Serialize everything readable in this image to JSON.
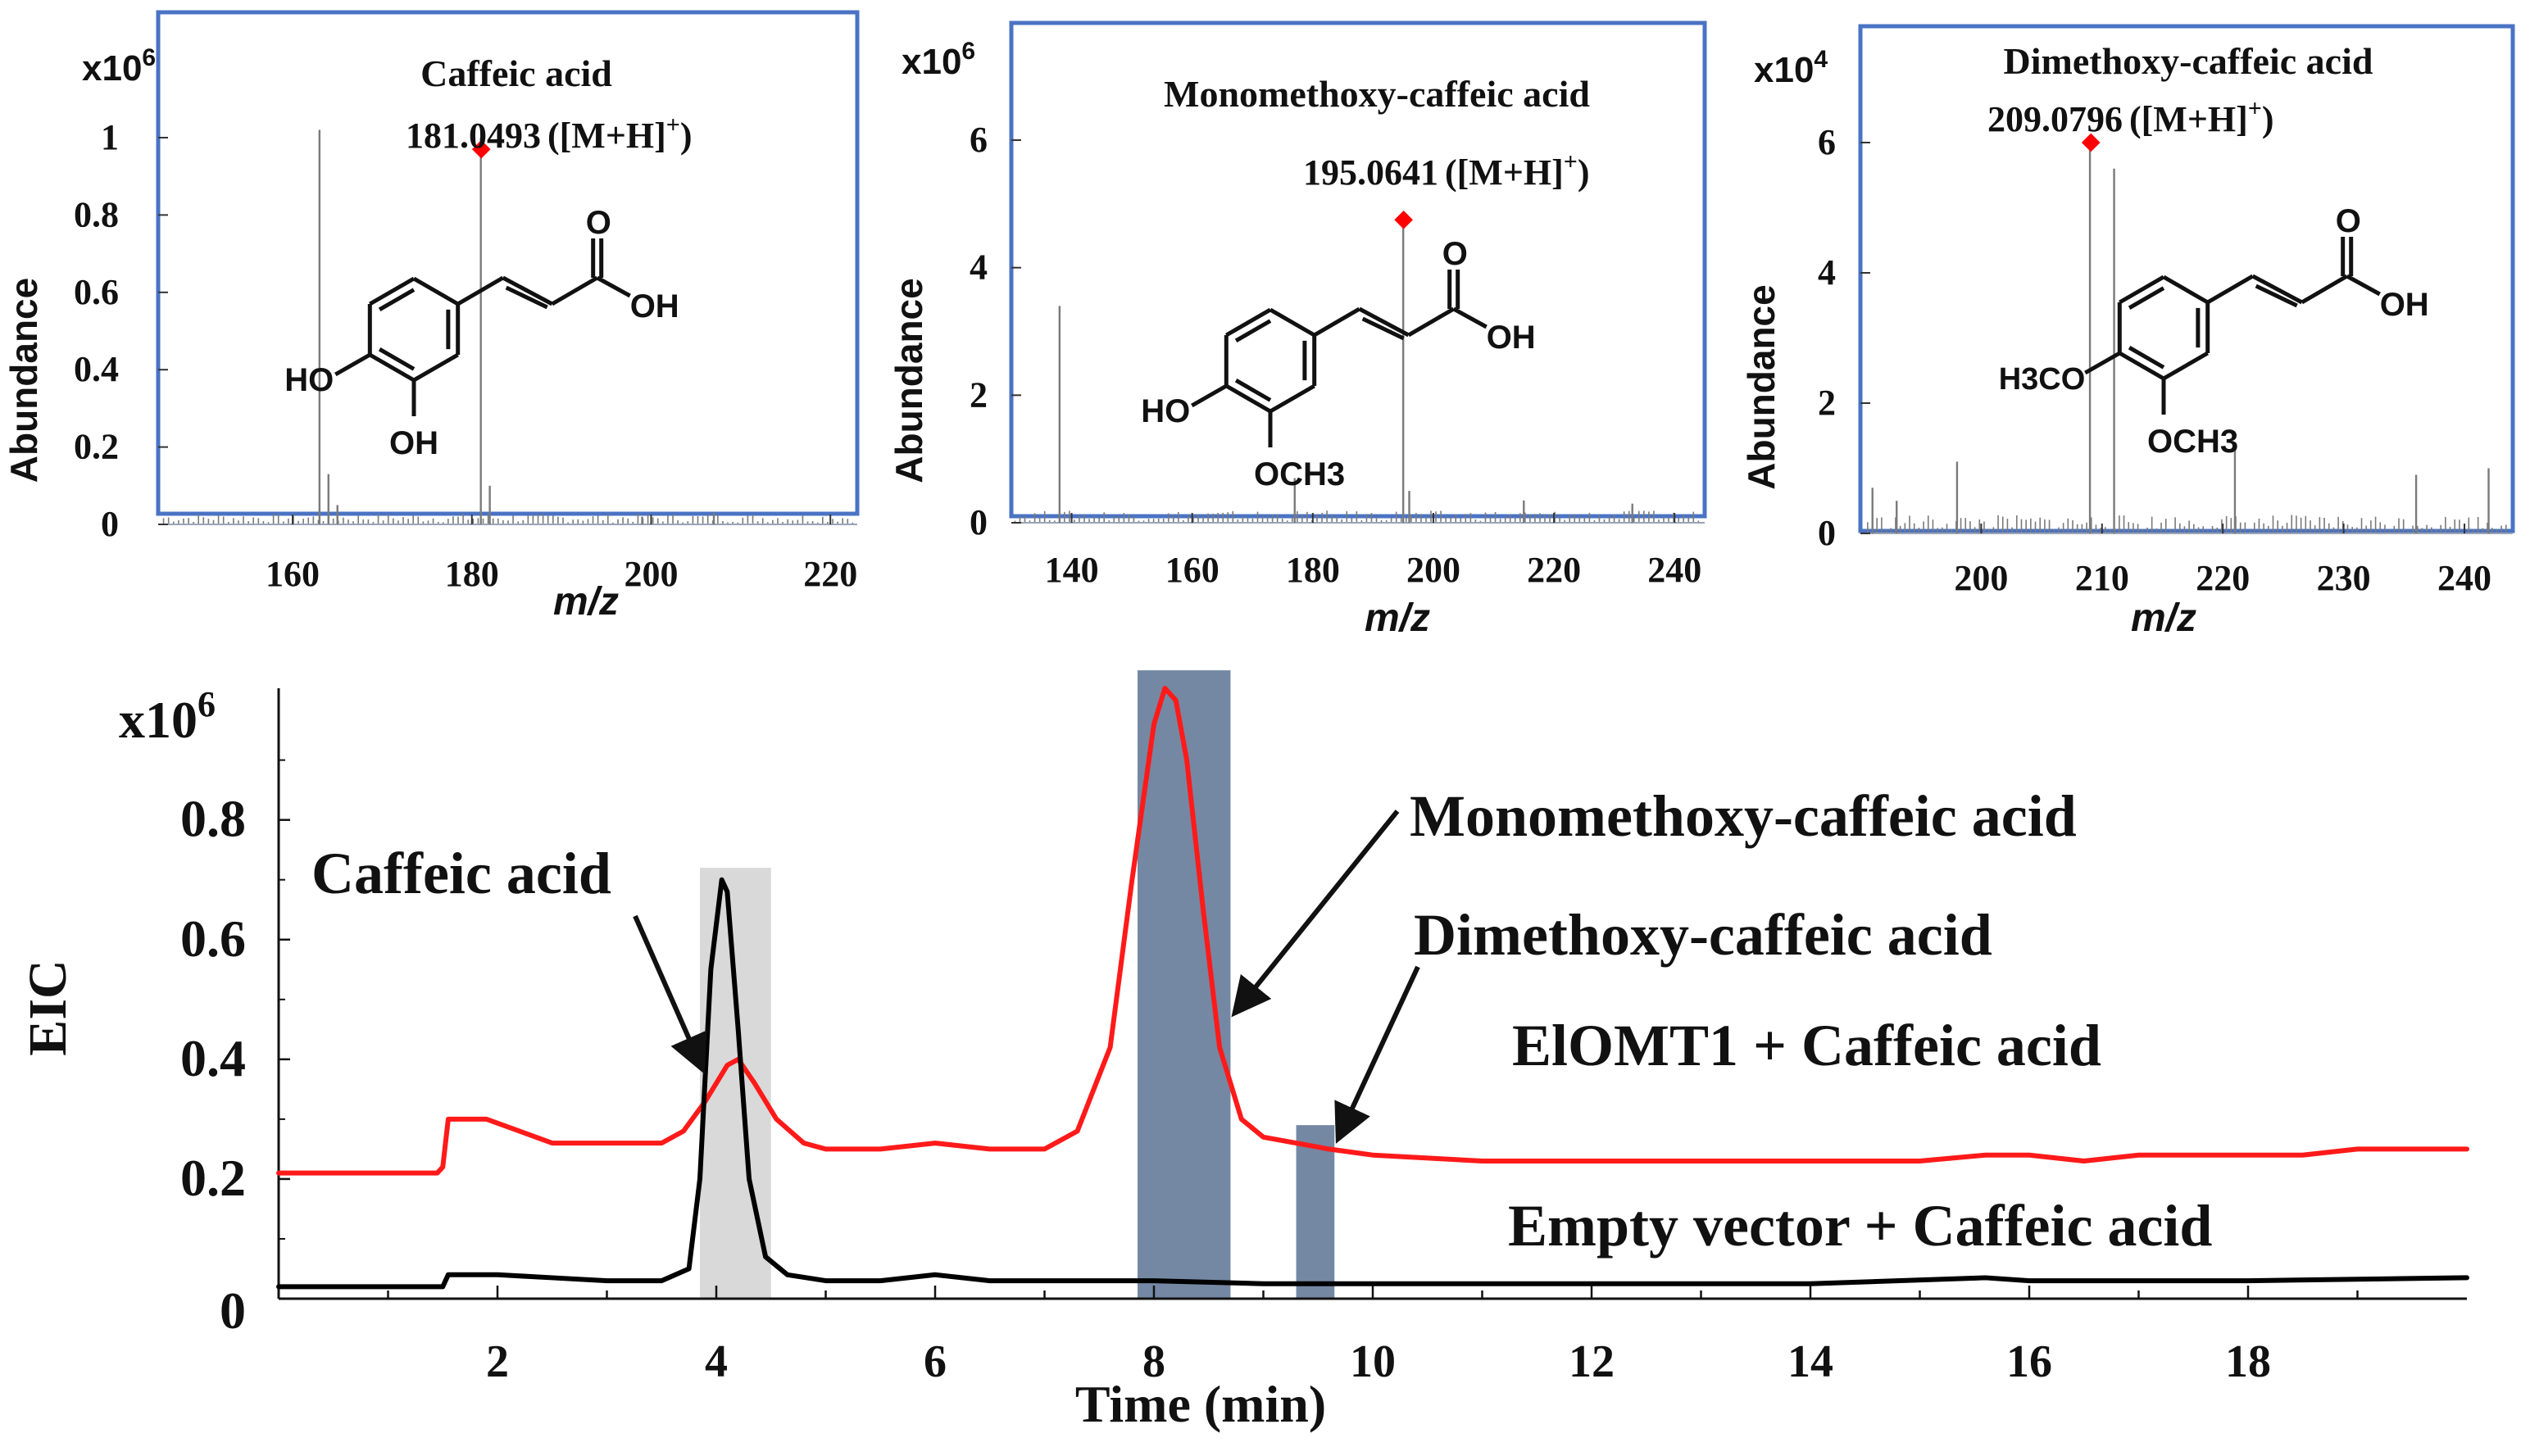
{
  "colors": {
    "frame": "#4a73c4",
    "highlight": "#ff0000",
    "trace_black": "#000000",
    "trace_red": "#ff1a1a",
    "band_light": "#d9d9d9",
    "band_dark": "#7588a3",
    "spectrum_line": "#7a7a7a"
  },
  "chart_data": [
    {
      "type": "bar",
      "panel": "ms-spectrum",
      "title": "Caffeic acid",
      "title_color": "#111111",
      "ylabel": "Abundance",
      "xlabel": "m/z",
      "exponent_label": "x10",
      "exponent": "6",
      "xlim": [
        145,
        223
      ],
      "ylim": [
        0,
        1.2
      ],
      "xticks": [
        "160",
        "180",
        "200",
        "220"
      ],
      "xtick_values": [
        160,
        180,
        200,
        220
      ],
      "yticks": [
        "0",
        "0.2",
        "0.4",
        "0.6",
        "0.8",
        "1"
      ],
      "ytick_values": [
        0,
        0.2,
        0.4,
        0.6,
        0.8,
        1
      ],
      "peaks": {
        "x": [
          163.0,
          164.0,
          165.0,
          181.0,
          182.0,
          199.0,
          207.0
        ],
        "values": [
          1.02,
          0.13,
          0.05,
          1.0,
          0.1,
          0.02,
          0.03
        ]
      },
      "noise_level": 0.015,
      "marker": {
        "x": 181.0493,
        "y": 0.97
      },
      "annotation": {
        "value": "181.0493",
        "adduct": "([M+H]",
        "sup": "+",
        "close": ")"
      },
      "structure": {
        "substituents": [
          "HO",
          "OH"
        ],
        "acid_o": "O",
        "acid_oh": "OH"
      }
    },
    {
      "type": "bar",
      "panel": "ms-spectrum",
      "title": "Monomethoxy-caffeic acid",
      "title_color": "#ff0000",
      "ylabel": "Abundance",
      "xlabel": "m/z",
      "exponent_label": "x10",
      "exponent": "6",
      "xlim": [
        130,
        245
      ],
      "ylim": [
        0,
        7.5
      ],
      "xticks": [
        "140",
        "160",
        "180",
        "200",
        "220",
        "240"
      ],
      "xtick_values": [
        140,
        160,
        180,
        200,
        220,
        240
      ],
      "yticks": [
        "0",
        "2",
        "4",
        "6"
      ],
      "ytick_values": [
        0,
        2,
        4,
        6
      ],
      "peaks": {
        "x": [
          138.0,
          177.0,
          195.0,
          196.0,
          215.0,
          233.0
        ],
        "values": [
          3.4,
          0.7,
          4.7,
          0.5,
          0.35,
          0.3
        ]
      },
      "noise_level": 0.1,
      "marker": {
        "x": 195.0641,
        "y": 4.75
      },
      "annotation": {
        "value": "195.0641",
        "adduct": "([M+H]",
        "sup": "+",
        "close": ")"
      },
      "structure": {
        "substituents": [
          "HO",
          "OCH3"
        ],
        "acid_o": "O",
        "acid_oh": "OH"
      }
    },
    {
      "type": "bar",
      "panel": "ms-spectrum",
      "title": "Dimethoxy-caffeic acid",
      "title_color": "#ff0000",
      "ylabel": "Abundance",
      "xlabel": "m/z",
      "exponent_label": "x10",
      "exponent": "4",
      "xlim": [
        190,
        244
      ],
      "ylim": [
        0,
        7.5
      ],
      "xticks": [
        "200",
        "210",
        "220",
        "230",
        "240"
      ],
      "xtick_values": [
        200,
        210,
        220,
        230,
        240
      ],
      "yticks": [
        "0",
        "2",
        "4",
        "6"
      ],
      "ytick_values": [
        0,
        2,
        4,
        6
      ],
      "peaks": {
        "x": [
          191.0,
          193.0,
          198.0,
          209.0,
          211.0,
          221.0,
          236.0,
          242.0
        ],
        "values": [
          0.7,
          0.5,
          1.1,
          5.9,
          5.6,
          1.4,
          0.9,
          1.0
        ]
      },
      "noise_level": 0.15,
      "marker": {
        "x": 209.0796,
        "y": 6.0
      },
      "annotation": {
        "value": "209.0796",
        "adduct": "([M+H]",
        "sup": "+",
        "close": ")"
      },
      "structure": {
        "substituents": [
          "H3CO",
          "OCH3"
        ],
        "acid_o": "O",
        "acid_oh": "OH"
      }
    },
    {
      "type": "line",
      "panel": "eic-chromatogram",
      "ylabel": "EIC",
      "xlabel": "Time (min)",
      "exponent_label": "x10",
      "exponent": "6",
      "xlim": [
        0,
        20
      ],
      "ylim": [
        0,
        1.02
      ],
      "xticks": [
        "2",
        "4",
        "6",
        "8",
        "10",
        "12",
        "14",
        "16",
        "18"
      ],
      "xtick_values": [
        2,
        4,
        6,
        8,
        10,
        12,
        14,
        16,
        18
      ],
      "yticks": [
        "0",
        "0.2",
        "0.4",
        "0.6",
        "0.8"
      ],
      "ytick_values": [
        0,
        0.2,
        0.4,
        0.6,
        0.8
      ],
      "series": [
        {
          "name": "ElOMT1 + Caffeic acid",
          "color": "#ff1a1a",
          "x": [
            0,
            1.45,
            1.5,
            1.55,
            1.9,
            2.2,
            2.5,
            3.0,
            3.5,
            3.7,
            3.9,
            4.1,
            4.2,
            4.35,
            4.55,
            4.8,
            5.0,
            5.5,
            6.0,
            6.5,
            7.0,
            7.3,
            7.6,
            7.8,
            8.0,
            8.1,
            8.2,
            8.3,
            8.45,
            8.6,
            8.8,
            9.0,
            9.3,
            9.6,
            10.0,
            11.0,
            12.0,
            13.0,
            14.0,
            15.0,
            15.6,
            16.0,
            16.5,
            17.0,
            17.5,
            18.0,
            18.5,
            19.0,
            19.5,
            20
          ],
          "values": [
            0.21,
            0.21,
            0.22,
            0.3,
            0.3,
            0.28,
            0.26,
            0.26,
            0.26,
            0.28,
            0.33,
            0.39,
            0.4,
            0.36,
            0.3,
            0.26,
            0.25,
            0.25,
            0.26,
            0.25,
            0.25,
            0.28,
            0.42,
            0.7,
            0.96,
            1.02,
            1.0,
            0.9,
            0.65,
            0.42,
            0.3,
            0.27,
            0.26,
            0.25,
            0.24,
            0.23,
            0.23,
            0.23,
            0.23,
            0.23,
            0.24,
            0.24,
            0.23,
            0.24,
            0.24,
            0.24,
            0.24,
            0.25,
            0.25,
            0.25
          ]
        },
        {
          "name": "Empty vector + Caffeic acid",
          "color": "#000000",
          "x": [
            0,
            1.45,
            1.5,
            1.55,
            2.0,
            2.5,
            3.0,
            3.5,
            3.75,
            3.85,
            3.95,
            4.05,
            4.1,
            4.2,
            4.3,
            4.45,
            4.65,
            5.0,
            5.5,
            6.0,
            6.5,
            7.0,
            8.0,
            9.0,
            10.0,
            12.0,
            14.0,
            15.6,
            16.0,
            18.0,
            20
          ],
          "values": [
            0.02,
            0.02,
            0.02,
            0.04,
            0.04,
            0.035,
            0.03,
            0.03,
            0.05,
            0.2,
            0.55,
            0.7,
            0.68,
            0.45,
            0.2,
            0.07,
            0.04,
            0.03,
            0.03,
            0.04,
            0.03,
            0.03,
            0.03,
            0.025,
            0.025,
            0.025,
            0.025,
            0.035,
            0.03,
            0.03,
            0.035
          ]
        }
      ],
      "bands": [
        {
          "from": 3.85,
          "to": 4.5,
          "top": 0.72,
          "color": "#d9d9d9"
        },
        {
          "from": 7.85,
          "to": 8.7,
          "top": 1.05,
          "color": "#7588a3"
        },
        {
          "from": 9.3,
          "to": 9.65,
          "top": 0.29,
          "color": "#7588a3"
        }
      ],
      "labels": {
        "caffeic": "Caffeic acid",
        "monomethoxy": "Monomethoxy-caffeic acid",
        "dimethoxy": "Dimethoxy-caffeic acid",
        "elomt1": "ElOMT1 + Caffeic acid",
        "empty": "Empty vector + Caffeic acid"
      }
    }
  ]
}
